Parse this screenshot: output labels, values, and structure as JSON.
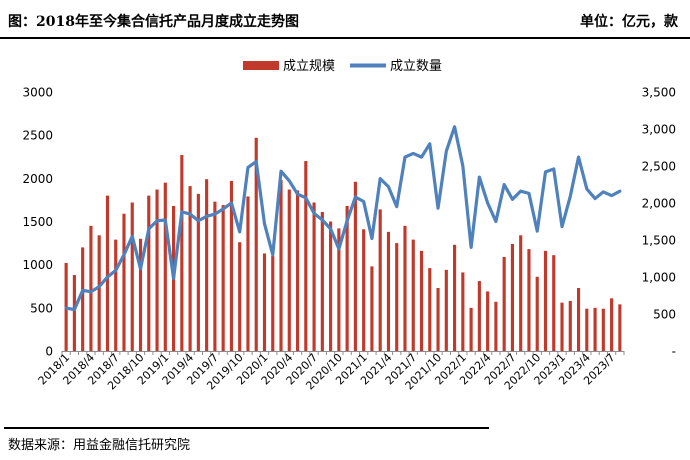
{
  "chart_data": {
    "type": "bar+line",
    "title": "图：2018年至今集合信托产品月度成立走势图",
    "unit_label": "单位：亿元，款",
    "source": "数据来源：用益金融信托研究院",
    "legend": {
      "position": "top-center",
      "items": [
        {
          "name": "成立规模",
          "marker": "bar",
          "color": "#c0392b"
        },
        {
          "name": "成立数量",
          "marker": "line",
          "color": "#4f81bd"
        }
      ]
    },
    "left_axis": {
      "min": 0,
      "max": 3000,
      "step": 500,
      "ticks": [
        "0",
        "500",
        "1000",
        "1500",
        "2000",
        "2500",
        "3000"
      ]
    },
    "right_axis": {
      "min": 0,
      "max": 3500,
      "step": 500,
      "ticks": [
        "-",
        "500",
        "1,000",
        "1,500",
        "2,000",
        "2,500",
        "3,000",
        "3,500"
      ]
    },
    "x_tick_labels": [
      {
        "index": 0,
        "label": "2018/1"
      },
      {
        "index": 3,
        "label": "2018/4"
      },
      {
        "index": 6,
        "label": "2018/7"
      },
      {
        "index": 9,
        "label": "2018/10"
      },
      {
        "index": 12,
        "label": "2019/1"
      },
      {
        "index": 15,
        "label": "2019/4"
      },
      {
        "index": 18,
        "label": "2019/7"
      },
      {
        "index": 21,
        "label": "2019/10"
      },
      {
        "index": 24,
        "label": "2020/1"
      },
      {
        "index": 27,
        "label": "2020/4"
      },
      {
        "index": 30,
        "label": "2020/7"
      },
      {
        "index": 33,
        "label": "2020/10"
      },
      {
        "index": 36,
        "label": "2021/1"
      },
      {
        "index": 39,
        "label": "2021/4"
      },
      {
        "index": 42,
        "label": "2021/7"
      },
      {
        "index": 45,
        "label": "2021/10"
      },
      {
        "index": 48,
        "label": "2022/1"
      },
      {
        "index": 51,
        "label": "2022/4"
      },
      {
        "index": 54,
        "label": "2022/7"
      },
      {
        "index": 57,
        "label": "2022/10"
      },
      {
        "index": 60,
        "label": "2023/1"
      },
      {
        "index": 63,
        "label": "2023/4"
      },
      {
        "index": 66,
        "label": "2023/7"
      }
    ],
    "categories": [
      "2018/1",
      "2018/2",
      "2018/3",
      "2018/4",
      "2018/5",
      "2018/6",
      "2018/7",
      "2018/8",
      "2018/9",
      "2018/10",
      "2018/11",
      "2018/12",
      "2019/1",
      "2019/2",
      "2019/3",
      "2019/4",
      "2019/5",
      "2019/6",
      "2019/7",
      "2019/8",
      "2019/9",
      "2019/10",
      "2019/11",
      "2019/12",
      "2020/1",
      "2020/2",
      "2020/3",
      "2020/4",
      "2020/5",
      "2020/6",
      "2020/7",
      "2020/8",
      "2020/9",
      "2020/10",
      "2020/11",
      "2020/12",
      "2021/1",
      "2021/2",
      "2021/3",
      "2021/4",
      "2021/5",
      "2021/6",
      "2021/7",
      "2021/8",
      "2021/9",
      "2021/10",
      "2021/11",
      "2021/12",
      "2022/1",
      "2022/2",
      "2022/3",
      "2022/4",
      "2022/5",
      "2022/6",
      "2022/7",
      "2022/8",
      "2022/9",
      "2022/10",
      "2022/11",
      "2022/12",
      "2023/1",
      "2023/2",
      "2023/3",
      "2023/4",
      "2023/5",
      "2023/6",
      "2023/7",
      "2023/8"
    ],
    "series": [
      {
        "name": "成立规模",
        "type": "bar",
        "axis": "left",
        "values": [
          1020,
          880,
          1200,
          1450,
          1340,
          1800,
          1290,
          1590,
          1720,
          1300,
          1800,
          1870,
          1950,
          1680,
          2270,
          1910,
          1820,
          1990,
          1730,
          1690,
          1970,
          1260,
          1790,
          2470,
          1130,
          1100,
          1980,
          1870,
          1860,
          2200,
          1720,
          1610,
          1500,
          1420,
          1680,
          1960,
          1410,
          980,
          1640,
          1380,
          1250,
          1450,
          1290,
          1160,
          960,
          730,
          940,
          1230,
          910,
          500,
          810,
          690,
          570,
          1090,
          1240,
          1340,
          1180,
          860,
          1160,
          1110,
          560,
          580,
          730,
          490,
          500,
          490,
          610,
          540
        ]
      },
      {
        "name": "成立数量",
        "type": "line",
        "axis": "right",
        "values": [
          580,
          560,
          820,
          800,
          870,
          1000,
          1090,
          1300,
          1550,
          1110,
          1650,
          1760,
          1770,
          980,
          1880,
          1850,
          1760,
          1820,
          1850,
          1920,
          2000,
          1610,
          2480,
          2560,
          1720,
          1300,
          2430,
          2300,
          2120,
          2070,
          1860,
          1770,
          1650,
          1380,
          1760,
          2080,
          2020,
          1520,
          2330,
          2220,
          1950,
          2620,
          2670,
          2620,
          2800,
          1930,
          2700,
          3030,
          2500,
          1400,
          2350,
          2000,
          1750,
          2250,
          2050,
          2160,
          2130,
          1620,
          2420,
          2460,
          1680,
          2090,
          2620,
          2190,
          2060,
          2150,
          2100,
          2160
        ]
      }
    ],
    "grid": false
  }
}
